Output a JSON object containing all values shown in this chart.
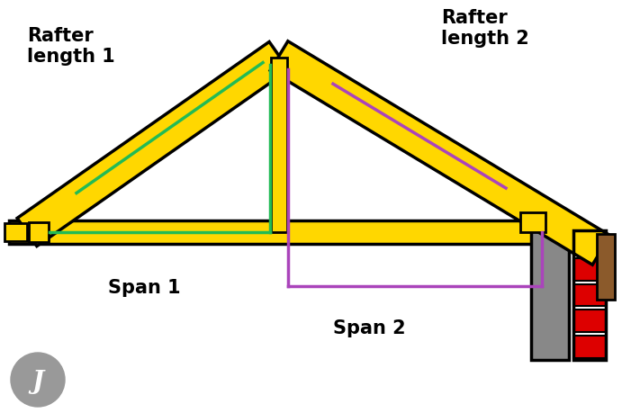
{
  "bg_color": "#ffffff",
  "yellow": "#FFD700",
  "black": "#000000",
  "green": "#22BB55",
  "purple": "#AA44BB",
  "gray": "#888888",
  "dark_gray": "#555555",
  "red": "#DD0000",
  "brown": "#8B5A2B",
  "rafter1_label": "Rafter\nlength 1",
  "rafter2_label": "Rafter\nlength 2",
  "span1_label": "Span 1",
  "span2_label": "Span 2",
  "figw": 7.01,
  "figh": 4.59
}
